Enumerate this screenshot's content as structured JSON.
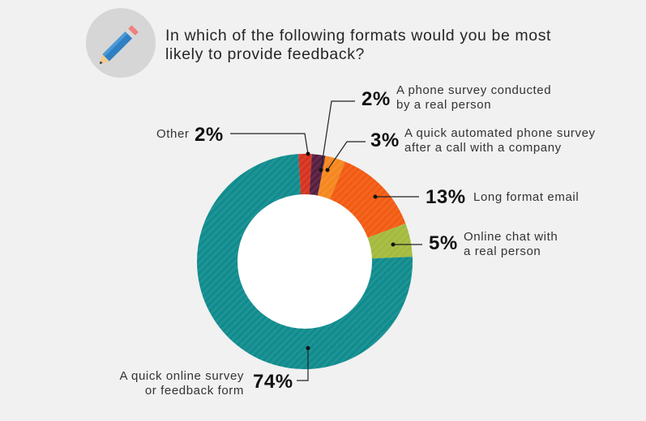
{
  "header": {
    "icon": "pencil-icon",
    "question_line1": "In which of the following formats would you be most",
    "question_line2": "likely to provide feedback?"
  },
  "colors": {
    "background": "#f1f1f1",
    "icon_circle": "#d6d6d6",
    "pencil_body": "#2f7fc4"
  },
  "chart_data": {
    "type": "pie",
    "donut": true,
    "title": "In which of the following formats would you be most likely to provide feedback?",
    "unit": "%",
    "slices": [
      {
        "value": 2,
        "pct_label": "2%",
        "line1": "Other",
        "line2": "",
        "color": "#d6321e"
      },
      {
        "value": 2,
        "pct_label": "2%",
        "line1": "A phone survey conducted",
        "line2": "by a real person",
        "color": "#561d3f"
      },
      {
        "value": 3,
        "pct_label": "3%",
        "line1": "A quick automated phone survey",
        "line2": "after a call with a company",
        "color": "#f5861d"
      },
      {
        "value": 13,
        "pct_label": "13%",
        "line1": "Long format email",
        "line2": "",
        "color": "#f25a11"
      },
      {
        "value": 5,
        "pct_label": "5%",
        "line1": "Online chat with",
        "line2": "a real person",
        "color": "#a3ba3c"
      },
      {
        "value": 74,
        "pct_label": "74%",
        "line1": "A quick online survey",
        "line2": "or feedback form",
        "color": "#0f8b8d"
      }
    ]
  }
}
